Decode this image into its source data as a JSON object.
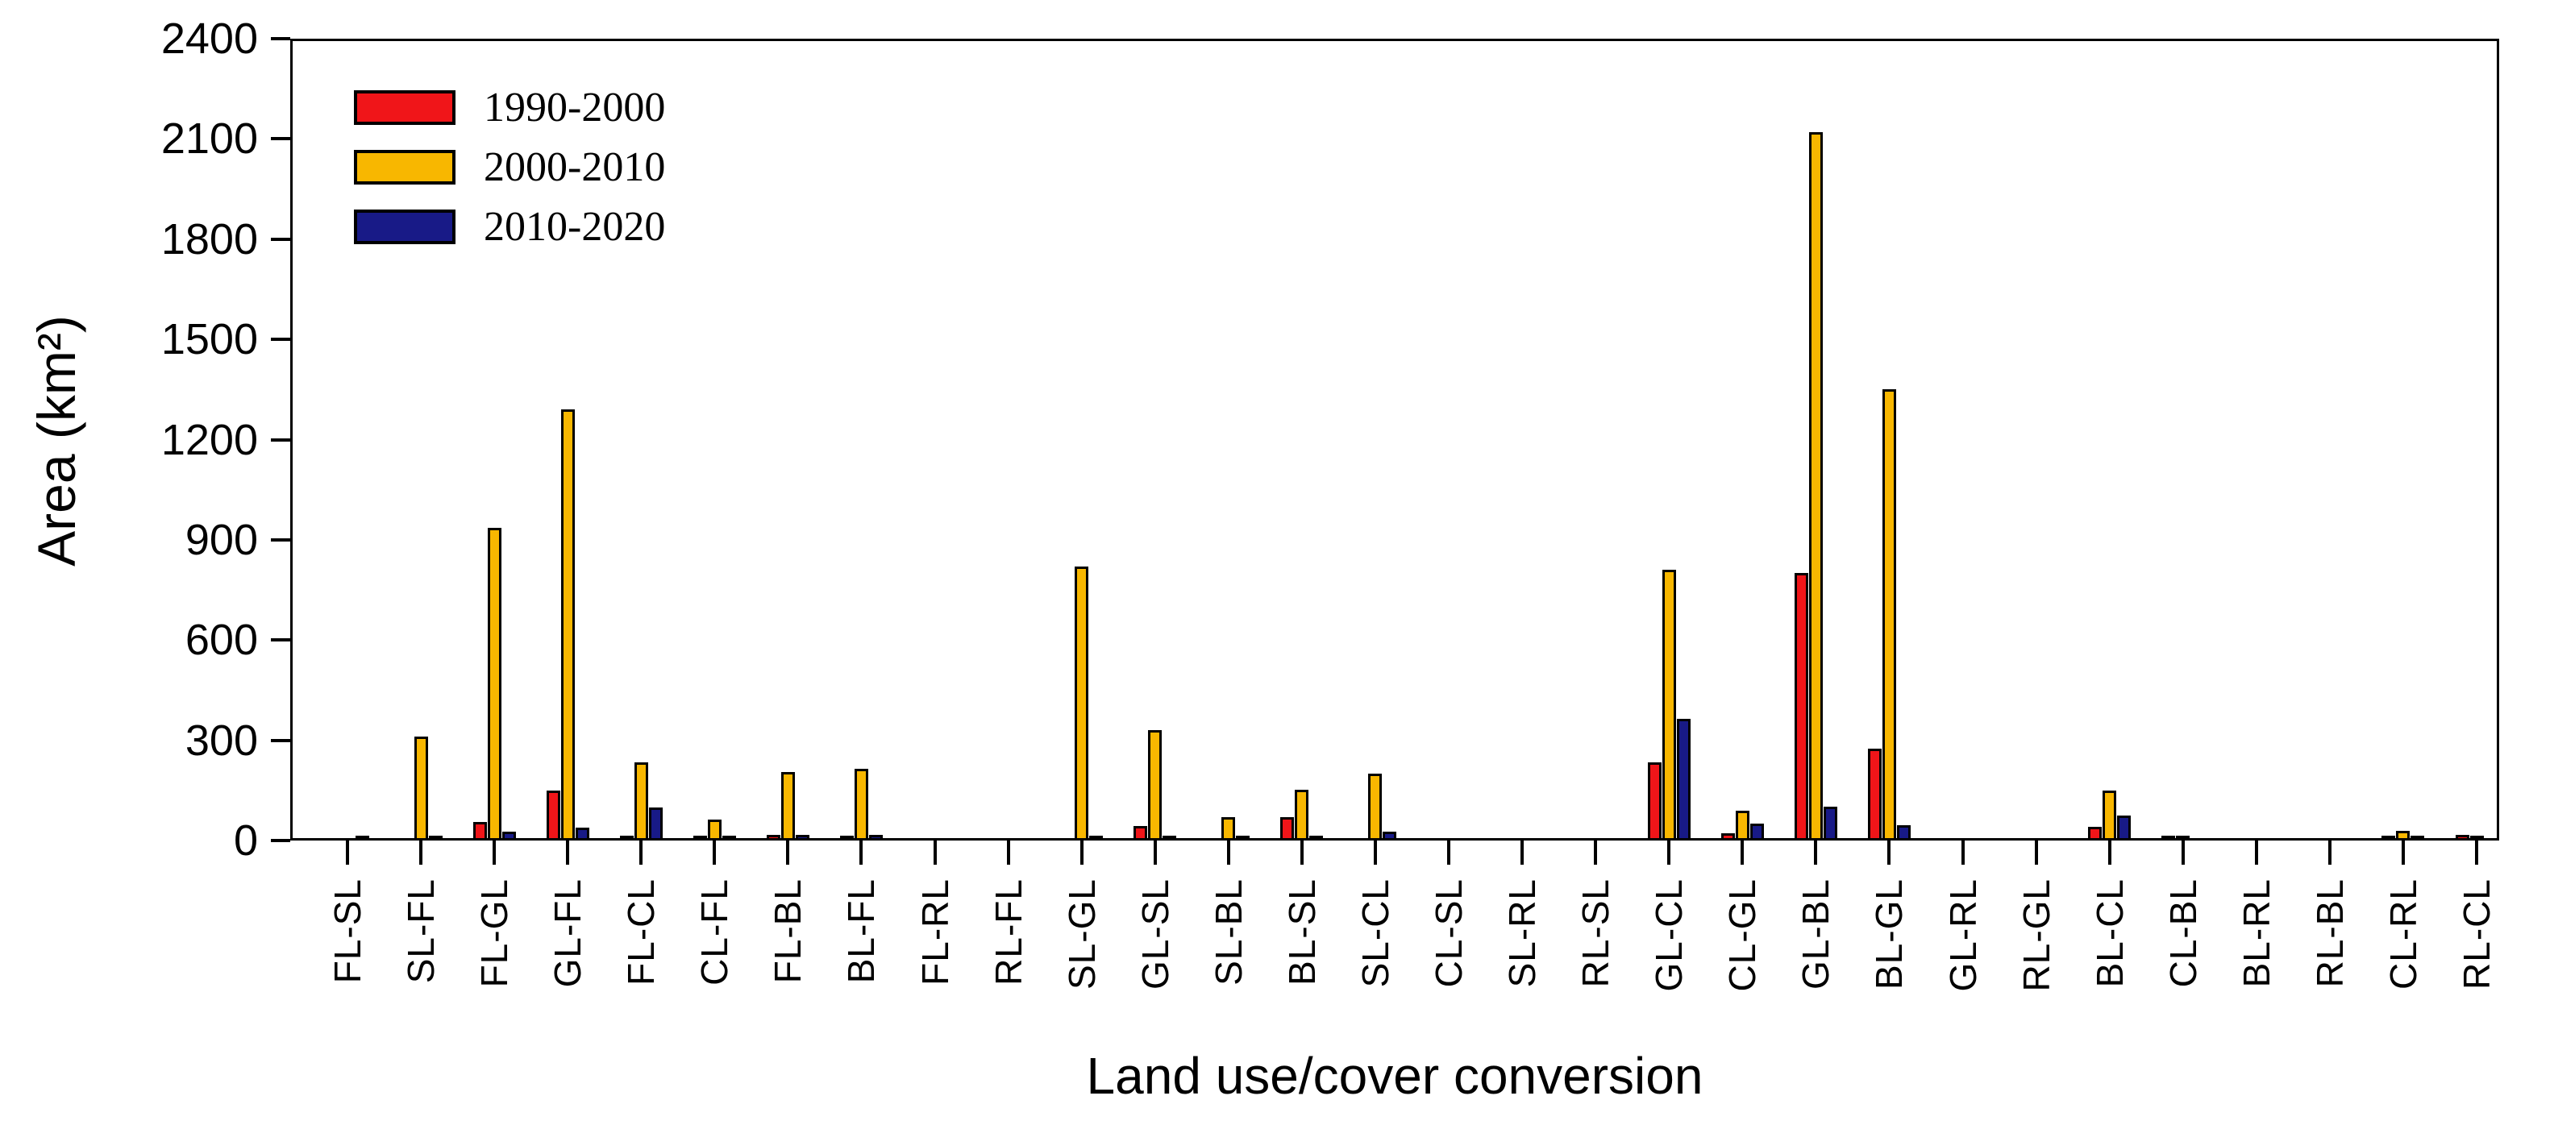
{
  "chart_data": {
    "type": "bar",
    "title": "",
    "xlabel": "Land use/cover conversion",
    "ylabel": "Area (km²)",
    "ylim": [
      0,
      2400
    ],
    "yticks": [
      0,
      300,
      600,
      900,
      1200,
      1500,
      1800,
      2100,
      2400
    ],
    "grid": false,
    "legend_position": "top-left",
    "bar_outline_color": "#000000",
    "axis_color": "#000000",
    "categories": [
      "FL-SL",
      "SL-FL",
      "FL-GL",
      "GL-FL",
      "FL-CL",
      "CL-FL",
      "FL-BL",
      "BL-FL",
      "FL-RL",
      "RL-FL",
      "SL-GL",
      "GL-SL",
      "SL-BL",
      "BL-SL",
      "SL-CL",
      "CL-SL",
      "SL-RL",
      "RL-SL",
      "GL-CL",
      "CL-GL",
      "GL-BL",
      "BL-GL",
      "GL-RL",
      "RL-GL",
      "BL-CL",
      "CL-BL",
      "BL-RL",
      "RL-BL",
      "CL-RL",
      "RL-CL"
    ],
    "series": [
      {
        "name": "1990-2000",
        "color": "#F01519",
        "values": [
          0,
          0,
          55,
          150,
          15,
          13,
          16,
          12,
          0,
          0,
          0,
          44,
          0,
          70,
          0,
          0,
          0,
          0,
          235,
          22,
          800,
          275,
          0,
          0,
          42,
          10,
          0,
          0,
          8,
          17
        ]
      },
      {
        "name": "2000-2010",
        "color": "#F8B700",
        "values": [
          0,
          312,
          935,
          1290,
          235,
          63,
          205,
          215,
          0,
          0,
          820,
          330,
          71,
          152,
          200,
          0,
          0,
          0,
          810,
          90,
          2120,
          1350,
          0,
          0,
          150,
          8,
          0,
          0,
          30,
          12
        ]
      },
      {
        "name": "2010-2020",
        "color": "#181A87",
        "values": [
          12,
          14,
          27,
          39,
          100,
          10,
          16,
          16,
          0,
          0,
          8,
          8,
          7,
          8,
          27,
          0,
          0,
          0,
          365,
          50,
          102,
          46,
          0,
          0,
          75,
          0,
          0,
          0,
          6,
          0
        ]
      }
    ]
  }
}
